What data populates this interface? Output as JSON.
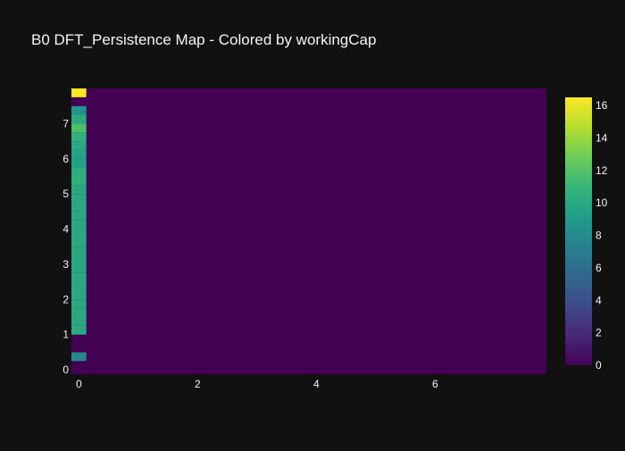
{
  "chart_data": {
    "type": "heatmap",
    "title": "B0 DFT_Persistence Map - Colored by workingCap",
    "xlabel": "",
    "ylabel": "",
    "colorbar_title": "",
    "xlim": [
      0,
      7.875
    ],
    "ylim": [
      0,
      7.875
    ],
    "cell_size": 0.25,
    "x_ticks": [
      0,
      2,
      4,
      6
    ],
    "y_ticks": [
      0,
      1,
      2,
      3,
      4,
      5,
      6,
      7
    ],
    "colorbar_range": [
      0,
      16.5
    ],
    "colorbar_ticks": [
      0,
      2,
      4,
      6,
      8,
      10,
      12,
      14,
      16
    ],
    "colorscale": "Viridis",
    "background_value": 0,
    "column_values": {
      "x": 0,
      "cells": [
        {
          "y": 0.125,
          "value": 0
        },
        {
          "y": 0.375,
          "value": 7.8
        },
        {
          "y": 0.625,
          "value": 0
        },
        {
          "y": 0.875,
          "value": 0
        },
        {
          "y": 1.125,
          "value": 10
        },
        {
          "y": 1.375,
          "value": 10
        },
        {
          "y": 1.625,
          "value": 10
        },
        {
          "y": 1.875,
          "value": 10
        },
        {
          "y": 2.125,
          "value": 10
        },
        {
          "y": 2.375,
          "value": 10
        },
        {
          "y": 2.625,
          "value": 10
        },
        {
          "y": 2.875,
          "value": 10
        },
        {
          "y": 3.125,
          "value": 10
        },
        {
          "y": 3.375,
          "value": 10
        },
        {
          "y": 3.625,
          "value": 10
        },
        {
          "y": 3.875,
          "value": 10
        },
        {
          "y": 4.125,
          "value": 10
        },
        {
          "y": 4.375,
          "value": 10
        },
        {
          "y": 4.625,
          "value": 10
        },
        {
          "y": 4.875,
          "value": 10
        },
        {
          "y": 5.125,
          "value": 10
        },
        {
          "y": 5.375,
          "value": 10.5
        },
        {
          "y": 5.625,
          "value": 10.3
        },
        {
          "y": 5.875,
          "value": 9.5
        },
        {
          "y": 6.125,
          "value": 9.5
        },
        {
          "y": 6.375,
          "value": 9.9
        },
        {
          "y": 6.625,
          "value": 10.6
        },
        {
          "y": 6.875,
          "value": 11.8
        },
        {
          "y": 7.125,
          "value": 10.1
        },
        {
          "y": 7.375,
          "value": 8.5
        },
        {
          "y": 7.625,
          "value": 0
        },
        {
          "y": 7.875,
          "value": 16.5
        }
      ]
    }
  }
}
